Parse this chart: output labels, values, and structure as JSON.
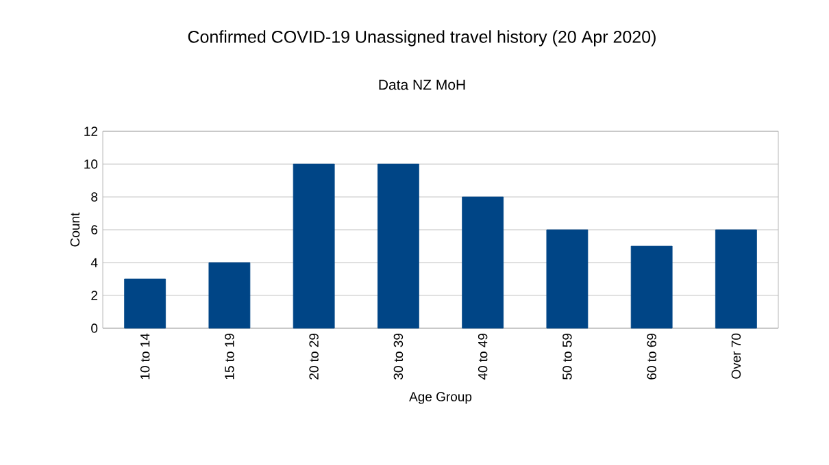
{
  "chart_data": {
    "type": "bar",
    "title": "Confirmed COVID-19 Unassigned travel history (20 Apr 2020)",
    "subtitle": "Data NZ MoH",
    "xlabel": "Age Group",
    "ylabel": "Count",
    "categories": [
      "10 to 14",
      "15 to 19",
      "20 to 29",
      "30 to 39",
      "40 to 49",
      "50 to 59",
      "60 to 69",
      "Over 70"
    ],
    "values": [
      3,
      4,
      10,
      10,
      8,
      6,
      5,
      6
    ],
    "color": "#004586",
    "ylim": [
      0,
      12
    ],
    "yticks": [
      0,
      2,
      4,
      6,
      8,
      10,
      12
    ],
    "grid": "y"
  }
}
